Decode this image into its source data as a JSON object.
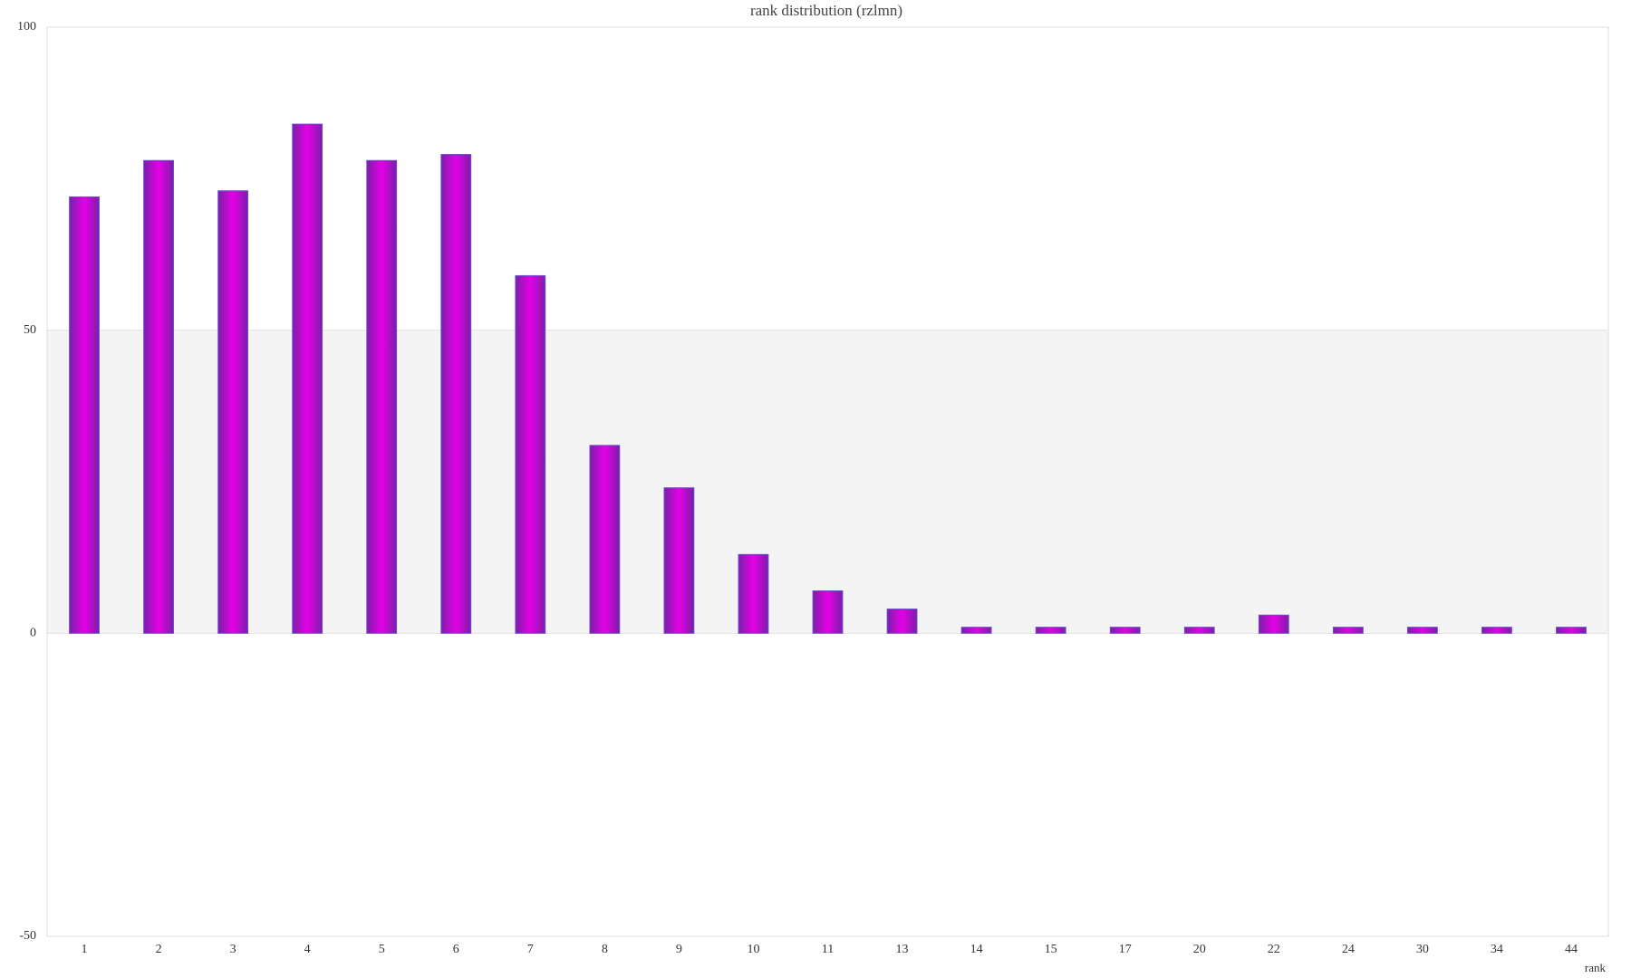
{
  "chart_data": {
    "type": "bar",
    "title": "rank distribution (rzlmn)",
    "x_label": "rank",
    "categories": [
      "1",
      "2",
      "3",
      "4",
      "5",
      "6",
      "7",
      "8",
      "9",
      "10",
      "11",
      "13",
      "14",
      "15",
      "17",
      "20",
      "22",
      "24",
      "30",
      "34",
      "44"
    ],
    "values": [
      72,
      78,
      73,
      84,
      78,
      79,
      59,
      31,
      24,
      13,
      7,
      4,
      1,
      1,
      1,
      1,
      3,
      1,
      1,
      1,
      1
    ],
    "color": "#e600e6",
    "ylim": [
      -50,
      100
    ],
    "yticks": [
      -50,
      0,
      50,
      100
    ],
    "grid": true
  }
}
